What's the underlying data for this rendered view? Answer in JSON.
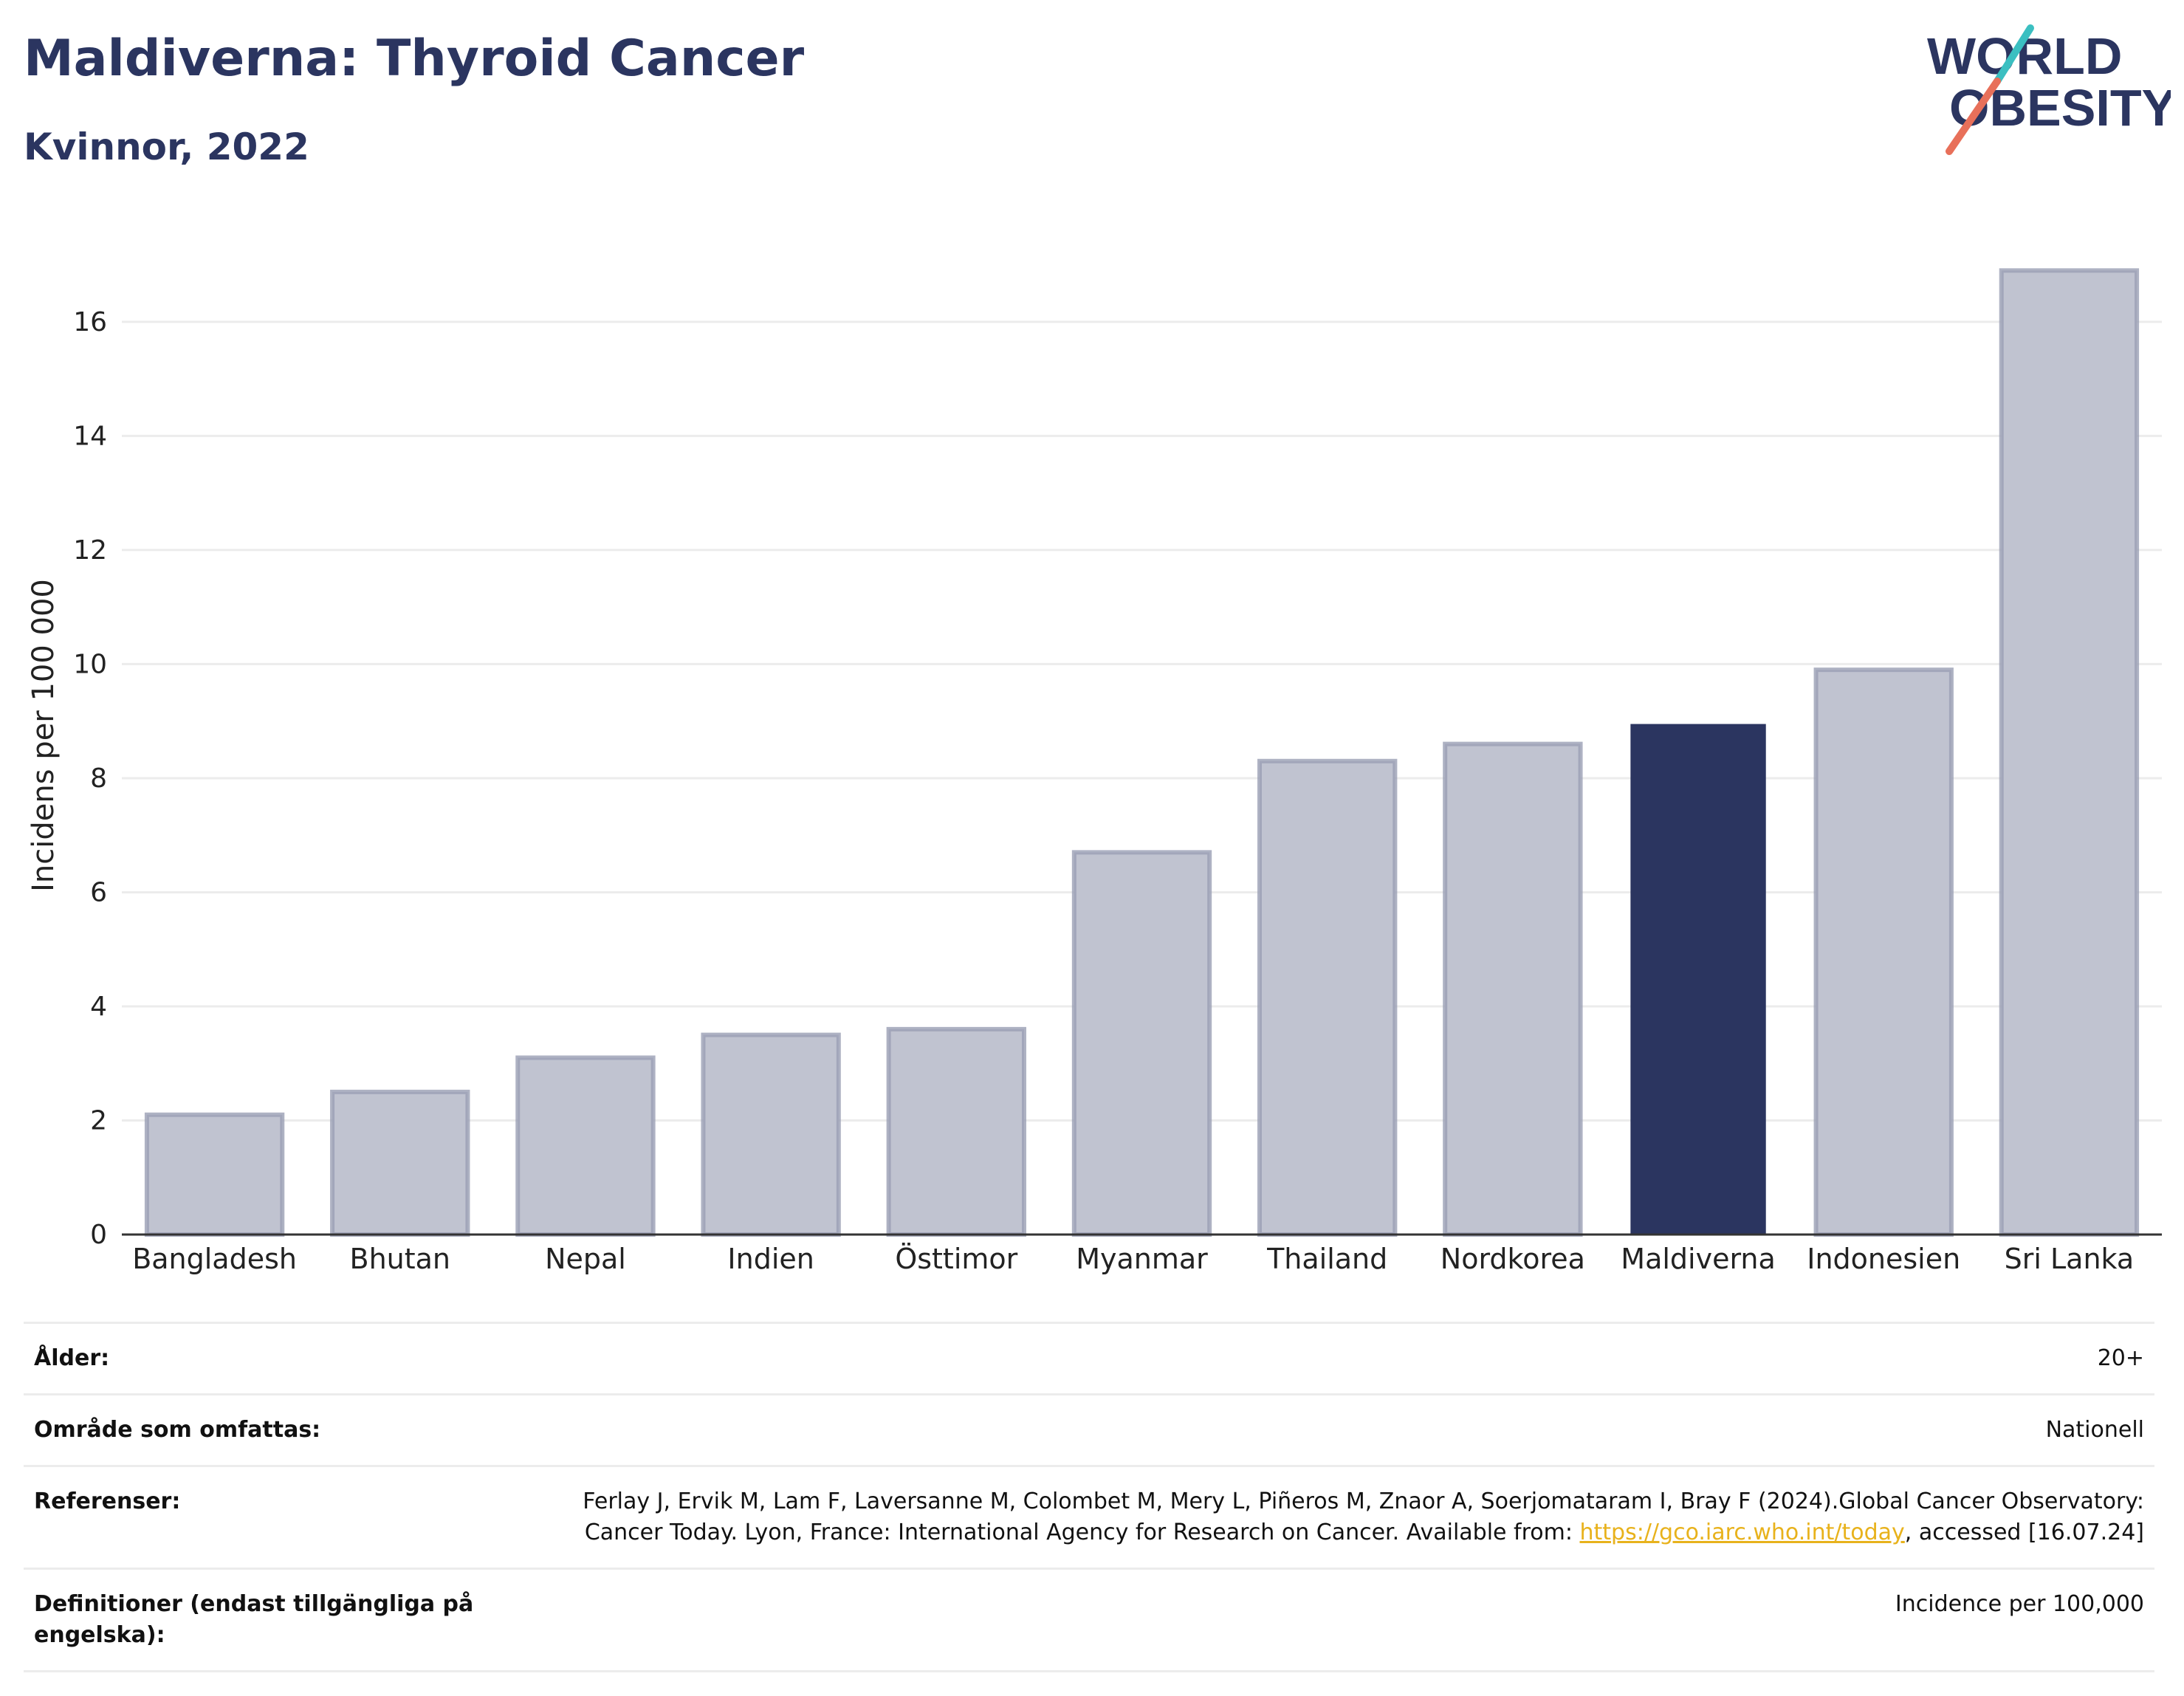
{
  "header": {
    "title": "Maldiverna: Thyroid Cancer",
    "subtitle": "Kvinnor, 2022"
  },
  "logo": {
    "line1": "WORLD",
    "line2": "OBESITY"
  },
  "chart_data": {
    "type": "bar",
    "categories": [
      "Bangladesh",
      "Bhutan",
      "Nepal",
      "Indien",
      "Östtimor",
      "Myanmar",
      "Thailand",
      "Nordkorea",
      "Maldiverna",
      "Indonesien",
      "Sri Lanka"
    ],
    "values": [
      2.1,
      2.5,
      3.1,
      3.5,
      3.6,
      6.7,
      8.3,
      8.6,
      8.95,
      9.9,
      16.9
    ],
    "highlight": "Maldiverna",
    "ylabel": "Incidens per 100 000",
    "ylim": [
      0,
      17.5
    ],
    "yticks": [
      0,
      2,
      4,
      6,
      8,
      10,
      12,
      14,
      16
    ],
    "grid": true,
    "colors": {
      "bar": "#c0c3d0",
      "bar_edge": "#9a9fb4",
      "highlight": "#2b3560",
      "grid": "#ececec"
    }
  },
  "meta": {
    "age": {
      "label": "Ålder:",
      "value": "20+"
    },
    "coverage": {
      "label": "Område som omfattas:",
      "value": "Nationell"
    },
    "references": {
      "label": "Referenser:",
      "text_before": "Ferlay J, Ervik M, Lam F, Laversanne M, Colombet M, Mery L, Piñeros M, Znaor A, Soerjomataram I, Bray F (2024).Global Cancer Observatory: Cancer Today. Lyon, France: International Agency for Research on Cancer. Available from: ",
      "link": "https://gco.iarc.who.int/today",
      "text_after": ", accessed [16.07.24]"
    },
    "definitions": {
      "label": "Definitioner (endast tillgängliga på engelska):",
      "value": "Incidence per 100,000"
    }
  }
}
